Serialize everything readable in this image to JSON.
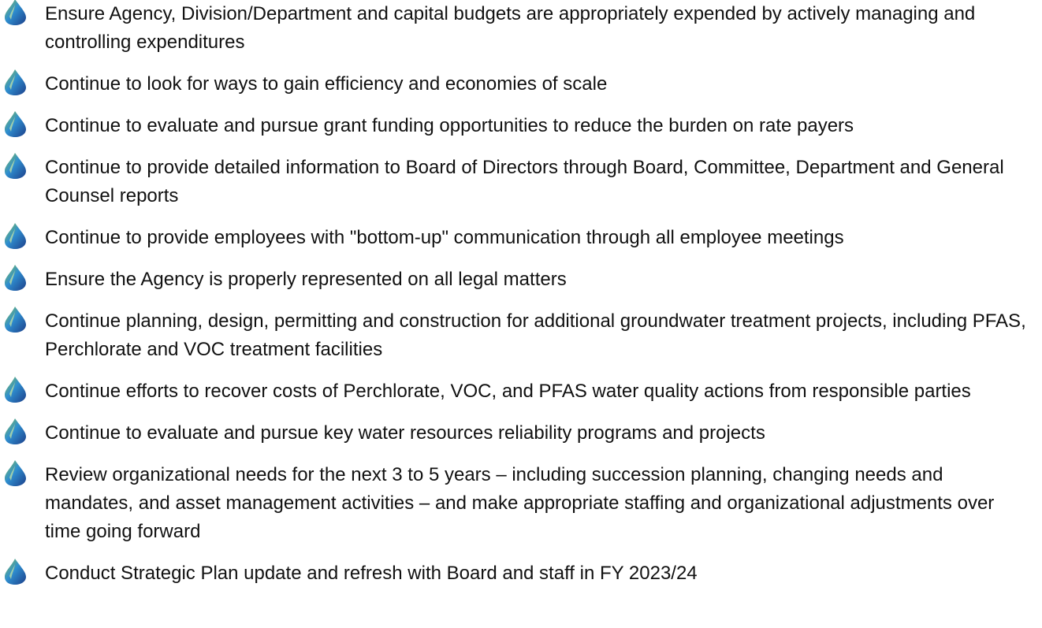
{
  "items": [
    "Ensure Agency, Division/Department and capital budgets are appropriately expended by actively managing and controlling expenditures",
    "Continue to look for ways to gain efficiency and economies of scale",
    "Continue to evaluate and pursue grant funding opportunities to reduce the burden on rate payers",
    "Continue to provide detailed information to Board of Directors through Board, Committee, Department and General Counsel reports",
    "Continue to provide employees with \"bottom-up\" communication through all employee meetings",
    "Ensure the Agency is properly represented on all legal matters",
    "Continue planning, design, permitting and construction for additional groundwater treatment projects, including PFAS, Perchlorate and VOC treatment facilities",
    "Continue efforts to recover costs of Perchlorate, VOC, and PFAS water quality actions from responsible parties",
    "Continue to evaluate and pursue key water resources reliability programs and projects",
    "Review organizational needs for the next 3 to 5 years – including succession planning, changing needs and mandates, and asset management activities – and make appropriate staffing and organizational adjustments over time going forward",
    "Conduct Strategic Plan update and refresh with Board and staff in FY 2023/24"
  ]
}
